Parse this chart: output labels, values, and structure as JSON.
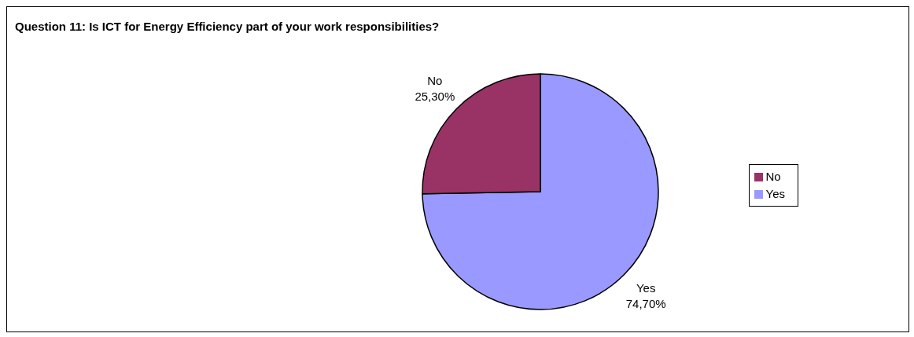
{
  "chart_data": {
    "type": "pie",
    "title": "Question 11: Is ICT for Energy Efficiency part of your work responsibilities?",
    "categories": [
      "Yes",
      "No"
    ],
    "values": [
      74.7,
      25.3
    ],
    "value_labels": [
      "74,70%",
      "25,30%"
    ],
    "colors": [
      "#9999ff",
      "#993366"
    ],
    "legend": "right"
  }
}
